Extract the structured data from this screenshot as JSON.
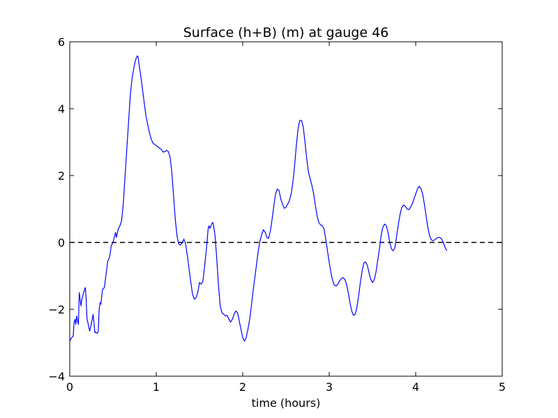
{
  "chart_data": {
    "type": "line",
    "title": "Surface (h+B) (m) at gauge 46",
    "xlabel": "time (hours)",
    "ylabel": "",
    "xlim": [
      0,
      5
    ],
    "ylim": [
      -4,
      6
    ],
    "x_ticks": [
      0,
      1,
      2,
      3,
      4,
      5
    ],
    "x_tick_labels": [
      "0",
      "1",
      "2",
      "3",
      "4",
      "5"
    ],
    "y_ticks": [
      -4,
      -2,
      0,
      2,
      4,
      6
    ],
    "y_tick_labels": [
      "−4",
      "−2",
      "0",
      "2",
      "4",
      "6"
    ],
    "grid": false,
    "reference_line": {
      "y": 0,
      "style": "dashed",
      "color": "#000000"
    },
    "series": [
      {
        "color": "#0000ff",
        "points": [
          [
            0.0,
            -2.95
          ],
          [
            0.02,
            -2.85
          ],
          [
            0.04,
            -2.8
          ],
          [
            0.05,
            -2.4
          ],
          [
            0.06,
            -2.3
          ],
          [
            0.07,
            -2.45
          ],
          [
            0.08,
            -2.2
          ],
          [
            0.09,
            -2.35
          ],
          [
            0.1,
            -2.45
          ],
          [
            0.11,
            -1.5
          ],
          [
            0.12,
            -1.7
          ],
          [
            0.13,
            -1.9
          ],
          [
            0.14,
            -1.7
          ],
          [
            0.16,
            -1.5
          ],
          [
            0.18,
            -1.35
          ],
          [
            0.19,
            -1.7
          ],
          [
            0.2,
            -2.3
          ],
          [
            0.21,
            -2.4
          ],
          [
            0.23,
            -2.65
          ],
          [
            0.24,
            -2.55
          ],
          [
            0.26,
            -2.3
          ],
          [
            0.27,
            -2.15
          ],
          [
            0.28,
            -2.4
          ],
          [
            0.29,
            -2.7
          ],
          [
            0.3,
            -2.68
          ],
          [
            0.32,
            -2.72
          ],
          [
            0.33,
            -2.65
          ],
          [
            0.34,
            -2.0
          ],
          [
            0.35,
            -1.8
          ],
          [
            0.36,
            -1.85
          ],
          [
            0.37,
            -1.6
          ],
          [
            0.38,
            -1.4
          ],
          [
            0.4,
            -1.35
          ],
          [
            0.42,
            -0.95
          ],
          [
            0.44,
            -0.55
          ],
          [
            0.46,
            -0.45
          ],
          [
            0.48,
            -0.1
          ],
          [
            0.5,
            0.0
          ],
          [
            0.52,
            0.2
          ],
          [
            0.53,
            0.3
          ],
          [
            0.54,
            0.15
          ],
          [
            0.56,
            0.4
          ],
          [
            0.58,
            0.5
          ],
          [
            0.6,
            0.65
          ],
          [
            0.62,
            1.2
          ],
          [
            0.64,
            2.0
          ],
          [
            0.66,
            2.8
          ],
          [
            0.68,
            3.6
          ],
          [
            0.7,
            4.4
          ],
          [
            0.72,
            4.9
          ],
          [
            0.74,
            5.2
          ],
          [
            0.76,
            5.45
          ],
          [
            0.78,
            5.58
          ],
          [
            0.79,
            5.55
          ],
          [
            0.8,
            5.35
          ],
          [
            0.82,
            5.0
          ],
          [
            0.84,
            4.6
          ],
          [
            0.86,
            4.2
          ],
          [
            0.88,
            3.8
          ],
          [
            0.9,
            3.55
          ],
          [
            0.92,
            3.3
          ],
          [
            0.94,
            3.1
          ],
          [
            0.96,
            2.98
          ],
          [
            0.98,
            2.93
          ],
          [
            1.0,
            2.9
          ],
          [
            1.02,
            2.85
          ],
          [
            1.04,
            2.82
          ],
          [
            1.06,
            2.78
          ],
          [
            1.08,
            2.7
          ],
          [
            1.1,
            2.72
          ],
          [
            1.12,
            2.75
          ],
          [
            1.14,
            2.72
          ],
          [
            1.16,
            2.55
          ],
          [
            1.18,
            2.1
          ],
          [
            1.2,
            1.4
          ],
          [
            1.22,
            0.7
          ],
          [
            1.24,
            0.2
          ],
          [
            1.26,
            -0.05
          ],
          [
            1.28,
            -0.08
          ],
          [
            1.3,
            0.0
          ],
          [
            1.32,
            0.1
          ],
          [
            1.34,
            -0.05
          ],
          [
            1.36,
            -0.4
          ],
          [
            1.38,
            -0.8
          ],
          [
            1.4,
            -1.2
          ],
          [
            1.42,
            -1.55
          ],
          [
            1.44,
            -1.7
          ],
          [
            1.46,
            -1.65
          ],
          [
            1.48,
            -1.5
          ],
          [
            1.5,
            -1.2
          ],
          [
            1.52,
            -1.25
          ],
          [
            1.54,
            -1.15
          ],
          [
            1.56,
            -0.7
          ],
          [
            1.58,
            -0.2
          ],
          [
            1.6,
            0.4
          ],
          [
            1.61,
            0.5
          ],
          [
            1.62,
            0.42
          ],
          [
            1.63,
            0.48
          ],
          [
            1.65,
            0.6
          ],
          [
            1.66,
            0.55
          ],
          [
            1.68,
            0.2
          ],
          [
            1.7,
            -0.5
          ],
          [
            1.72,
            -1.3
          ],
          [
            1.74,
            -1.9
          ],
          [
            1.76,
            -2.1
          ],
          [
            1.78,
            -2.15
          ],
          [
            1.8,
            -2.2
          ],
          [
            1.82,
            -2.18
          ],
          [
            1.84,
            -2.3
          ],
          [
            1.86,
            -2.38
          ],
          [
            1.88,
            -2.3
          ],
          [
            1.9,
            -2.15
          ],
          [
            1.92,
            -2.05
          ],
          [
            1.94,
            -2.1
          ],
          [
            1.96,
            -2.35
          ],
          [
            1.98,
            -2.6
          ],
          [
            2.0,
            -2.85
          ],
          [
            2.02,
            -2.95
          ],
          [
            2.04,
            -2.85
          ],
          [
            2.06,
            -2.6
          ],
          [
            2.08,
            -2.3
          ],
          [
            2.1,
            -1.9
          ],
          [
            2.12,
            -1.45
          ],
          [
            2.14,
            -1.05
          ],
          [
            2.16,
            -0.65
          ],
          [
            2.18,
            -0.25
          ],
          [
            2.2,
            0.05
          ],
          [
            2.22,
            0.25
          ],
          [
            2.24,
            0.38
          ],
          [
            2.26,
            0.3
          ],
          [
            2.28,
            0.15
          ],
          [
            2.3,
            0.12
          ],
          [
            2.32,
            0.35
          ],
          [
            2.34,
            0.7
          ],
          [
            2.36,
            1.1
          ],
          [
            2.38,
            1.45
          ],
          [
            2.4,
            1.6
          ],
          [
            2.42,
            1.55
          ],
          [
            2.44,
            1.3
          ],
          [
            2.46,
            1.15
          ],
          [
            2.48,
            1.02
          ],
          [
            2.5,
            1.05
          ],
          [
            2.52,
            1.15
          ],
          [
            2.54,
            1.25
          ],
          [
            2.56,
            1.45
          ],
          [
            2.58,
            1.8
          ],
          [
            2.6,
            2.3
          ],
          [
            2.62,
            2.9
          ],
          [
            2.64,
            3.4
          ],
          [
            2.66,
            3.65
          ],
          [
            2.68,
            3.65
          ],
          [
            2.7,
            3.45
          ],
          [
            2.72,
            3.0
          ],
          [
            2.74,
            2.5
          ],
          [
            2.76,
            2.1
          ],
          [
            2.78,
            1.9
          ],
          [
            2.8,
            1.7
          ],
          [
            2.82,
            1.45
          ],
          [
            2.84,
            1.1
          ],
          [
            2.86,
            0.8
          ],
          [
            2.88,
            0.6
          ],
          [
            2.9,
            0.52
          ],
          [
            2.92,
            0.5
          ],
          [
            2.94,
            0.4
          ],
          [
            2.96,
            0.1
          ],
          [
            2.98,
            -0.25
          ],
          [
            3.0,
            -0.6
          ],
          [
            3.02,
            -0.9
          ],
          [
            3.04,
            -1.15
          ],
          [
            3.06,
            -1.28
          ],
          [
            3.08,
            -1.3
          ],
          [
            3.1,
            -1.25
          ],
          [
            3.12,
            -1.15
          ],
          [
            3.14,
            -1.08
          ],
          [
            3.16,
            -1.05
          ],
          [
            3.18,
            -1.1
          ],
          [
            3.2,
            -1.25
          ],
          [
            3.22,
            -1.5
          ],
          [
            3.24,
            -1.8
          ],
          [
            3.26,
            -2.05
          ],
          [
            3.28,
            -2.18
          ],
          [
            3.3,
            -2.15
          ],
          [
            3.32,
            -1.95
          ],
          [
            3.34,
            -1.6
          ],
          [
            3.36,
            -1.2
          ],
          [
            3.38,
            -0.85
          ],
          [
            3.4,
            -0.62
          ],
          [
            3.42,
            -0.58
          ],
          [
            3.44,
            -0.68
          ],
          [
            3.46,
            -0.9
          ],
          [
            3.48,
            -1.1
          ],
          [
            3.5,
            -1.2
          ],
          [
            3.52,
            -1.12
          ],
          [
            3.54,
            -0.9
          ],
          [
            3.56,
            -0.55
          ],
          [
            3.58,
            -0.2
          ],
          [
            3.6,
            0.2
          ],
          [
            3.62,
            0.45
          ],
          [
            3.64,
            0.55
          ],
          [
            3.66,
            0.5
          ],
          [
            3.68,
            0.3
          ],
          [
            3.7,
            0.0
          ],
          [
            3.72,
            -0.2
          ],
          [
            3.74,
            -0.25
          ],
          [
            3.76,
            -0.15
          ],
          [
            3.78,
            0.2
          ],
          [
            3.8,
            0.55
          ],
          [
            3.82,
            0.85
          ],
          [
            3.84,
            1.05
          ],
          [
            3.86,
            1.12
          ],
          [
            3.88,
            1.08
          ],
          [
            3.9,
            1.0
          ],
          [
            3.92,
            0.98
          ],
          [
            3.94,
            1.05
          ],
          [
            3.96,
            1.15
          ],
          [
            3.98,
            1.3
          ],
          [
            4.0,
            1.45
          ],
          [
            4.02,
            1.6
          ],
          [
            4.04,
            1.68
          ],
          [
            4.06,
            1.62
          ],
          [
            4.08,
            1.45
          ],
          [
            4.1,
            1.15
          ],
          [
            4.12,
            0.8
          ],
          [
            4.14,
            0.45
          ],
          [
            4.16,
            0.2
          ],
          [
            4.18,
            0.08
          ],
          [
            4.2,
            0.05
          ],
          [
            4.22,
            0.08
          ],
          [
            4.24,
            0.12
          ],
          [
            4.26,
            0.15
          ],
          [
            4.28,
            0.15
          ],
          [
            4.3,
            0.1
          ],
          [
            4.32,
            0.0
          ],
          [
            4.34,
            -0.15
          ],
          [
            4.36,
            -0.25
          ]
        ]
      }
    ]
  }
}
